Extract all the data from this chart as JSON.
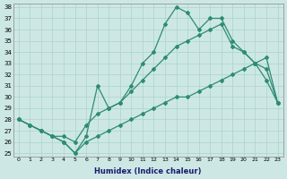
{
  "line1_x": [
    0,
    1,
    2,
    3,
    4,
    5,
    6,
    7,
    8,
    9,
    10,
    11,
    12,
    13,
    14,
    15,
    16,
    17,
    18,
    19,
    20,
    21,
    22,
    23
  ],
  "line1_y": [
    28,
    27.5,
    27,
    26.5,
    26,
    25,
    26.5,
    31,
    29,
    29.5,
    31,
    33,
    34,
    36.5,
    38,
    37.5,
    36,
    37,
    37,
    35,
    34,
    33,
    31.5,
    29.5
  ],
  "line2_x": [
    0,
    1,
    2,
    3,
    4,
    5,
    6,
    7,
    8,
    9,
    10,
    11,
    12,
    13,
    14,
    15,
    16,
    17,
    18,
    19,
    20,
    21,
    22,
    23
  ],
  "line2_y": [
    28,
    27.5,
    27,
    26.5,
    26.5,
    26,
    27.5,
    28.5,
    29,
    29.5,
    30.5,
    31.5,
    32.5,
    33.5,
    34.5,
    35,
    35.5,
    36,
    36.5,
    34.5,
    34,
    33,
    32.5,
    29.5
  ],
  "line3_x": [
    0,
    1,
    2,
    3,
    4,
    5,
    6,
    7,
    8,
    9,
    10,
    11,
    12,
    13,
    14,
    15,
    16,
    17,
    18,
    19,
    20,
    21,
    22,
    23
  ],
  "line3_y": [
    28,
    27.5,
    27,
    26.5,
    26,
    25,
    26,
    26.5,
    27,
    27.5,
    28,
    28.5,
    29,
    29.5,
    30,
    30,
    30.5,
    31,
    31.5,
    32,
    32.5,
    33,
    33.5,
    29.5
  ],
  "color": "#2e8b74",
  "bg_color": "#cde8e4",
  "grid_color": "#b0d5d0",
  "xlabel": "Humidex (Indice chaleur)",
  "ylim": [
    25,
    38
  ],
  "xlim": [
    -0.5,
    23.5
  ],
  "yticks": [
    25,
    26,
    27,
    28,
    29,
    30,
    31,
    32,
    33,
    34,
    35,
    36,
    37,
    38
  ],
  "xticks": [
    0,
    1,
    2,
    3,
    4,
    5,
    6,
    7,
    8,
    9,
    10,
    11,
    12,
    13,
    14,
    15,
    16,
    17,
    18,
    19,
    20,
    21,
    22,
    23
  ]
}
